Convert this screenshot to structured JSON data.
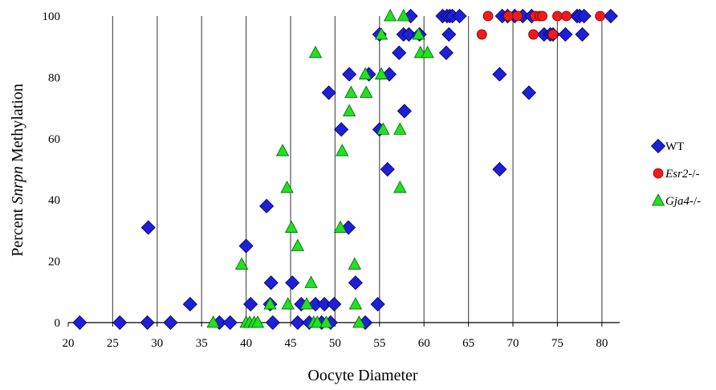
{
  "chart_data": {
    "type": "scatter",
    "xlabel": "Oocyte Diameter",
    "ylabel": {
      "prefix": "Percent ",
      "italic": "Snrpn",
      "suffix": " Methylation"
    },
    "xlim": [
      20,
      82
    ],
    "ylim": [
      0,
      100
    ],
    "x_ticks": [
      20,
      25,
      30,
      35,
      40,
      45,
      50,
      55,
      60,
      65,
      70,
      75,
      80
    ],
    "y_ticks": [
      0,
      20,
      40,
      60,
      80,
      100
    ],
    "grid": "vertical",
    "legend_position": "right",
    "series": [
      {
        "name": "WT",
        "name_italic": "",
        "name_suffix": "",
        "marker": "diamond",
        "color": "#1f1fd6",
        "stroke": "#000066",
        "points": [
          [
            21.3,
            0
          ],
          [
            25.8,
            0
          ],
          [
            28.9,
            0
          ],
          [
            29.0,
            31
          ],
          [
            31.5,
            0
          ],
          [
            33.7,
            6
          ],
          [
            37.0,
            0
          ],
          [
            38.2,
            0
          ],
          [
            40.0,
            25
          ],
          [
            40.5,
            6
          ],
          [
            42.3,
            38
          ],
          [
            42.7,
            6
          ],
          [
            42.8,
            13
          ],
          [
            43.0,
            0
          ],
          [
            45.2,
            13
          ],
          [
            45.8,
            0
          ],
          [
            46.2,
            6
          ],
          [
            47.1,
            0
          ],
          [
            47.8,
            6
          ],
          [
            48.5,
            0
          ],
          [
            48.8,
            6
          ],
          [
            49.3,
            75
          ],
          [
            49.5,
            0
          ],
          [
            49.9,
            6
          ],
          [
            50.7,
            63
          ],
          [
            51.5,
            31
          ],
          [
            51.6,
            81
          ],
          [
            52.3,
            13
          ],
          [
            53.4,
            0
          ],
          [
            53.8,
            81
          ],
          [
            54.8,
            6
          ],
          [
            55.0,
            94
          ],
          [
            55.0,
            63
          ],
          [
            55.9,
            50
          ],
          [
            56.1,
            81
          ],
          [
            57.2,
            88
          ],
          [
            57.7,
            94
          ],
          [
            57.8,
            69
          ],
          [
            58.3,
            94
          ],
          [
            58.5,
            100
          ],
          [
            59.5,
            94
          ],
          [
            62.1,
            100
          ],
          [
            62.5,
            88
          ],
          [
            62.6,
            100
          ],
          [
            62.9,
            100
          ],
          [
            62.8,
            94
          ],
          [
            63.2,
            100
          ],
          [
            64.0,
            100
          ],
          [
            68.5,
            81
          ],
          [
            68.5,
            50
          ],
          [
            68.8,
            100
          ],
          [
            69.4,
            100
          ],
          [
            70.2,
            100
          ],
          [
            71.1,
            100
          ],
          [
            71.8,
            75
          ],
          [
            72.1,
            100
          ],
          [
            73.5,
            94
          ],
          [
            74.2,
            94
          ],
          [
            74.5,
            94
          ],
          [
            75.9,
            94
          ],
          [
            77.2,
            100
          ],
          [
            77.5,
            100
          ],
          [
            77.8,
            94
          ],
          [
            78.0,
            100
          ],
          [
            81.0,
            100
          ]
        ]
      },
      {
        "name": "Esr2-/-",
        "name_italic": "Esr2",
        "name_suffix": "-/-",
        "marker": "circle",
        "color": "#ee1c1c",
        "stroke": "#880000",
        "points": [
          [
            66.5,
            94
          ],
          [
            67.2,
            100
          ],
          [
            69.5,
            100
          ],
          [
            70.5,
            100
          ],
          [
            72.3,
            94
          ],
          [
            72.5,
            100
          ],
          [
            73.0,
            100
          ],
          [
            73.3,
            100
          ],
          [
            74.5,
            94
          ],
          [
            75.0,
            100
          ],
          [
            76.0,
            100
          ],
          [
            79.8,
            100
          ]
        ]
      },
      {
        "name": "Gja4-/-",
        "name_italic": "Gja4",
        "name_suffix": "-/-",
        "marker": "triangle",
        "color": "#22e022",
        "stroke": "#006600",
        "points": [
          [
            36.3,
            0
          ],
          [
            39.5,
            19
          ],
          [
            40.0,
            0
          ],
          [
            40.4,
            0
          ],
          [
            40.9,
            0
          ],
          [
            41.3,
            0
          ],
          [
            42.7,
            6
          ],
          [
            44.1,
            56
          ],
          [
            44.6,
            44
          ],
          [
            44.7,
            6
          ],
          [
            45.1,
            31
          ],
          [
            45.8,
            25
          ],
          [
            46.8,
            6
          ],
          [
            47.3,
            13
          ],
          [
            47.6,
            0
          ],
          [
            47.8,
            88
          ],
          [
            48.0,
            0
          ],
          [
            49.0,
            0
          ],
          [
            50.6,
            31
          ],
          [
            50.8,
            56
          ],
          [
            51.6,
            69
          ],
          [
            51.8,
            75
          ],
          [
            52.2,
            19
          ],
          [
            52.3,
            6
          ],
          [
            52.7,
            0
          ],
          [
            53.4,
            81
          ],
          [
            53.5,
            75
          ],
          [
            55.2,
            94
          ],
          [
            55.2,
            81
          ],
          [
            55.4,
            63
          ],
          [
            56.2,
            100
          ],
          [
            57.3,
            63
          ],
          [
            57.3,
            44
          ],
          [
            57.7,
            100
          ],
          [
            59.4,
            94
          ],
          [
            59.6,
            88
          ],
          [
            60.4,
            88
          ]
        ]
      }
    ]
  }
}
